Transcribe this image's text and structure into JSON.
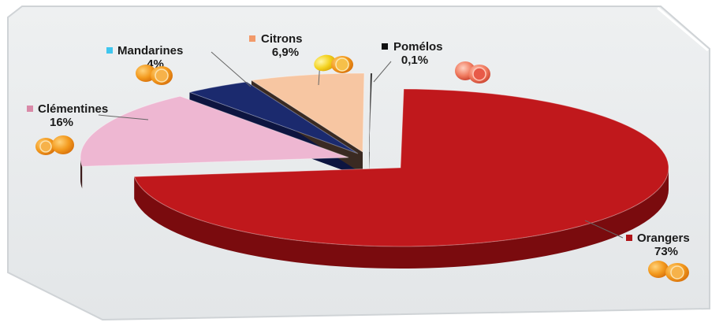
{
  "chart_data": {
    "type": "pie",
    "title": "",
    "slices": [
      {
        "label": "Orangers",
        "value": 73,
        "display": "73%",
        "color": "#c0181c",
        "side": "#7a0b0e",
        "fruit": "orange"
      },
      {
        "label": "Clémentines",
        "value": 16,
        "display": "16%",
        "color": "#eeb7d2",
        "side": "#3a1a1a",
        "fruit": "orange"
      },
      {
        "label": "Mandarines",
        "value": 4,
        "display": "4%",
        "color": "#1b2a6e",
        "side": "#0d1540",
        "fruit": "orange"
      },
      {
        "label": "Citrons",
        "value": 6.9,
        "display": "6,9%",
        "color": "#f7c6a2",
        "side": "#3a2a22",
        "fruit": "lemon"
      },
      {
        "label": "Pomélos",
        "value": 0.1,
        "display": "0,1%",
        "color": "#151515",
        "side": "#000000",
        "fruit": "grapefruit"
      }
    ],
    "legend_markers": {
      "Mandarines": "#3fc6ef",
      "Citrons": "#f29a6a",
      "Pomélos": "#111111",
      "Clémentines": "#d98aa8",
      "Orangers": "#b01418"
    },
    "legend_placement": "labels around slices"
  },
  "labels": {
    "mandarines_name": "Mandarines",
    "mandarines_pct": "4%",
    "citrons_name": "Citrons",
    "citrons_pct": "6,9%",
    "pomelos_name": "Pomélos",
    "pomelos_pct": "0,1%",
    "clementines_name": "Clémentines",
    "clementines_pct": "16%",
    "orangers_name": "Orangers",
    "orangers_pct": "73%"
  },
  "icons": [
    "orange-fruit-icon",
    "lemon-fruit-icon",
    "grapefruit-fruit-icon"
  ]
}
